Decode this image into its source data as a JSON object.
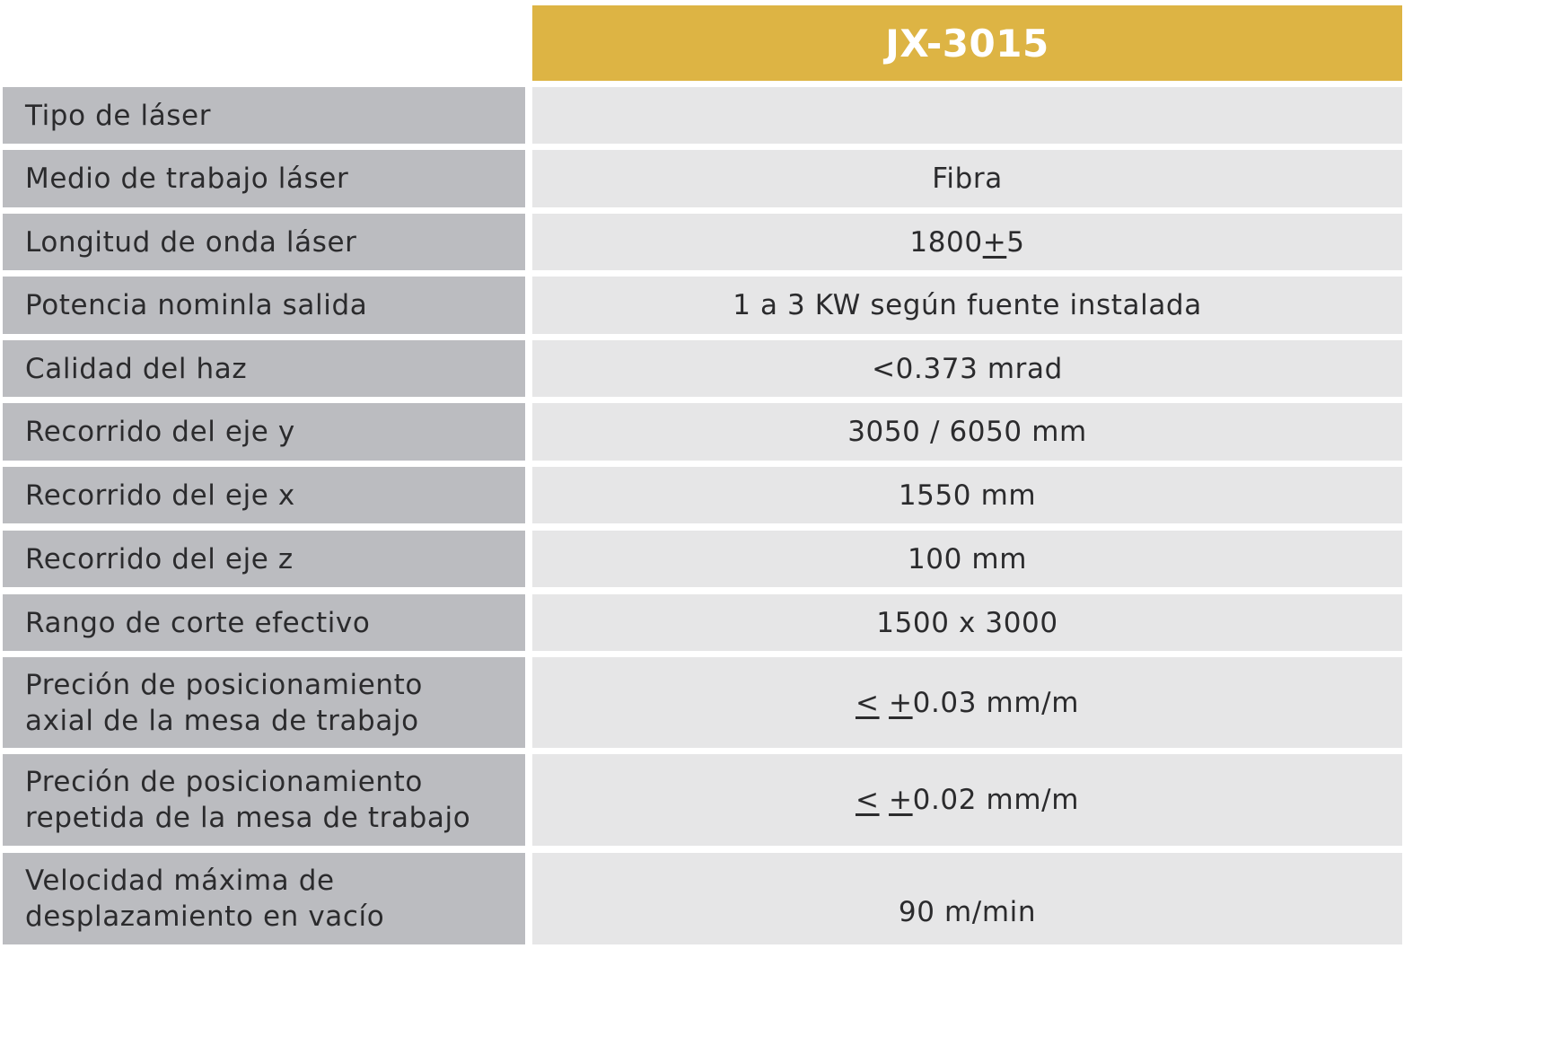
{
  "table": {
    "model_header": "JX-3015",
    "rows": [
      {
        "label": "Tipo de láser",
        "value": ""
      },
      {
        "label": "Medio de trabajo láser",
        "value": "Fibra"
      },
      {
        "label": "Longitud de onda láser",
        "value": "1800+5"
      },
      {
        "label": "Potencia nominla salida",
        "value": "1 a 3 KW según fuente instalada"
      },
      {
        "label": "Calidad del haz",
        "value": "<0.373 mrad"
      },
      {
        "label": "Recorrido del eje y",
        "value": "3050 / 6050 mm"
      },
      {
        "label": "Recorrido del eje x",
        "value": "1550 mm"
      },
      {
        "label": "Recorrido del eje z",
        "value": "100 mm"
      },
      {
        "label": "Rango de corte efectivo",
        "value": "1500 x 3000"
      },
      {
        "label": "Preción de posicionamiento\naxial de la mesa de trabajo",
        "value": "< +0.03 mm/m"
      },
      {
        "label": "Preción de posicionamiento\nrepetida de la mesa de trabajo",
        "value": "< +0.02 mm/m"
      },
      {
        "label": "Velocidad máxima de\ndesplazamiento en vacío",
        "value": "90 m/min"
      }
    ]
  }
}
